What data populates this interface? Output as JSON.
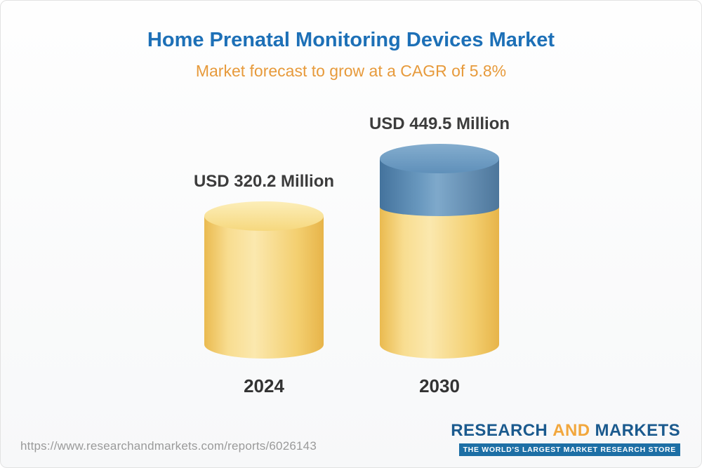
{
  "header": {
    "title": "Home Prenatal Monitoring Devices Market",
    "subtitle": "Market forecast to grow at a CAGR of 5.8%"
  },
  "chart_data": {
    "type": "bar",
    "title": "Home Prenatal Monitoring Devices Market",
    "subtitle": "Market forecast to grow at a CAGR of 5.8%",
    "cagr_pct": 5.8,
    "unit": "USD Million",
    "categories": [
      "2024",
      "2030"
    ],
    "values": [
      320.2,
      449.5
    ],
    "value_labels": [
      "USD 320.2 Million",
      "USD 449.5 Million"
    ],
    "ylim": [
      0,
      449.5
    ],
    "legend": "none",
    "grid": "off",
    "colors": {
      "base_bar": "#f5d77e",
      "growth_segment": "#5a8ab2"
    },
    "growth_segment": {
      "category": "2030",
      "from": 320.2,
      "to": 449.5
    }
  },
  "footer": {
    "url": "https://www.researchandmarkets.com/reports/6026143",
    "logo": {
      "part1": "RESEARCH",
      "part2": "AND",
      "part3": "MARKETS",
      "tagline": "THE WORLD'S LARGEST MARKET RESEARCH STORE"
    }
  }
}
